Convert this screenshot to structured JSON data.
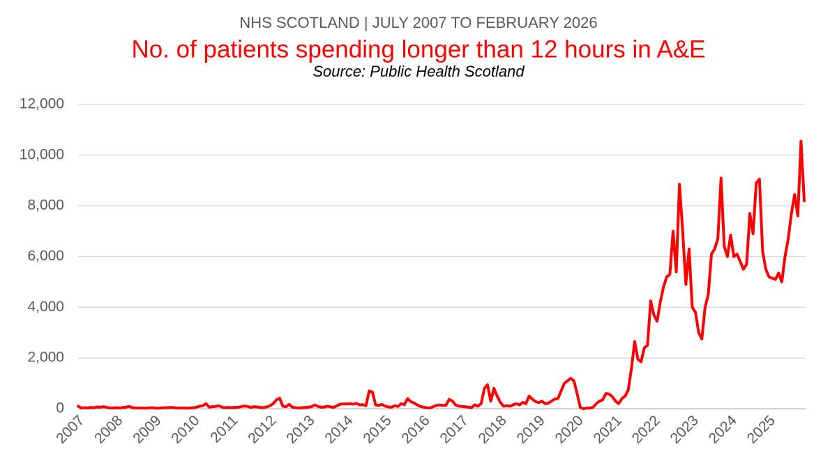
{
  "chart_data": {
    "type": "line",
    "subtitle": "NHS SCOTLAND | JULY 2007 TO FEBRUARY 2026",
    "title": "No. of patients spending longer than 12 hours in A&E",
    "source": "Source: Public Health Scotland",
    "color": "#ff0000",
    "grid": true,
    "ylim": [
      0,
      12000
    ],
    "yticks": [
      0,
      {
        "value": 2000,
        "label": "2,000"
      },
      {
        "value": 4000,
        "label": "4,000"
      },
      {
        "value": 6000,
        "label": "6,000"
      },
      {
        "value": 8000,
        "label": "8,000"
      },
      {
        "value": 10000,
        "label": "10,000"
      },
      {
        "value": 12000,
        "label": "12,000"
      }
    ],
    "categories": [
      "2007",
      null,
      null,
      null,
      null,
      null,
      null,
      null,
      null,
      null,
      null,
      null,
      "2008",
      null,
      null,
      null,
      null,
      null,
      null,
      null,
      null,
      null,
      null,
      null,
      "2009",
      null,
      null,
      null,
      null,
      null,
      null,
      null,
      null,
      null,
      null,
      null,
      "2010",
      null,
      null,
      null,
      null,
      null,
      null,
      null,
      null,
      null,
      null,
      null,
      "2011",
      null,
      null,
      null,
      null,
      null,
      null,
      null,
      null,
      null,
      null,
      null,
      "2012",
      null,
      null,
      null,
      null,
      null,
      null,
      null,
      null,
      null,
      null,
      null,
      "2013",
      null,
      null,
      null,
      null,
      null,
      null,
      null,
      null,
      null,
      null,
      null,
      "2014",
      null,
      null,
      null,
      null,
      null,
      null,
      null,
      null,
      null,
      null,
      null,
      "2015",
      null,
      null,
      null,
      null,
      null,
      null,
      null,
      null,
      null,
      null,
      null,
      "2016",
      null,
      null,
      null,
      null,
      null,
      null,
      null,
      null,
      null,
      null,
      null,
      "2017",
      null,
      null,
      null,
      null,
      null,
      null,
      null,
      null,
      null,
      null,
      null,
      "2018",
      null,
      null,
      null,
      null,
      null,
      null,
      null,
      null,
      null,
      null,
      null,
      "2019",
      null,
      null,
      null,
      null,
      null,
      null,
      null,
      null,
      null,
      null,
      null,
      "2020",
      null,
      null,
      null,
      null,
      null,
      null,
      null,
      null,
      null,
      null,
      null,
      "2021",
      null,
      null,
      null,
      null,
      null,
      null,
      null,
      null,
      null,
      null,
      null,
      "2022",
      null,
      null,
      null,
      null,
      null,
      null,
      null,
      null,
      null,
      null,
      null,
      "2023",
      null,
      null,
      null,
      null,
      null,
      null,
      null,
      null,
      null,
      null,
      null,
      "2024",
      null,
      null,
      null,
      null,
      null,
      null,
      null,
      null,
      null,
      null,
      null,
      "2025",
      null,
      null,
      null,
      null,
      null,
      null,
      null,
      null,
      null,
      null,
      null
    ],
    "values": [
      100,
      30,
      40,
      30,
      50,
      40,
      70,
      60,
      80,
      50,
      30,
      30,
      40,
      30,
      50,
      60,
      90,
      40,
      30,
      30,
      30,
      20,
      30,
      40,
      30,
      20,
      30,
      40,
      40,
      50,
      40,
      30,
      30,
      30,
      20,
      30,
      40,
      60,
      100,
      120,
      200,
      60,
      80,
      90,
      120,
      60,
      40,
      50,
      40,
      50,
      60,
      80,
      110,
      90,
      50,
      80,
      70,
      50,
      40,
      70,
      120,
      200,
      350,
      420,
      100,
      80,
      170,
      60,
      40,
      30,
      40,
      50,
      60,
      80,
      150,
      90,
      60,
      70,
      100,
      70,
      60,
      120,
      180,
      190,
      190,
      200,
      180,
      210,
      150,
      160,
      120,
      700,
      660,
      150,
      130,
      170,
      100,
      70,
      60,
      120,
      90,
      200,
      160,
      400,
      280,
      230,
      150,
      90,
      60,
      40,
      30,
      80,
      130,
      150,
      130,
      140,
      370,
      300,
      150,
      100,
      90,
      80,
      60,
      40,
      150,
      100,
      200,
      800,
      950,
      300,
      800,
      500,
      250,
      100,
      120,
      100,
      150,
      200,
      150,
      250,
      200,
      500,
      380,
      280,
      240,
      300,
      200,
      220,
      300,
      380,
      400,
      700,
      1000,
      1100,
      1200,
      1100,
      600,
      50,
      0,
      20,
      30,
      60,
      200,
      300,
      350,
      600,
      580,
      480,
      300,
      200,
      400,
      500,
      750,
      1600,
      2650,
      1950,
      1850,
      2400,
      2500,
      4250,
      3700,
      3450,
      4200,
      4800,
      5200,
      5300,
      7000,
      5400,
      8850,
      7000,
      4900,
      6300,
      4000,
      3800,
      3000,
      2750,
      4000,
      4500,
      6100,
      6300,
      6700,
      9100,
      6400,
      6000,
      6850,
      6000,
      6100,
      5800,
      5500,
      5700,
      7700,
      6900,
      8900,
      9050,
      6200,
      5500,
      5200,
      5150,
      5100,
      5350,
      5000,
      6000,
      6700,
      7700,
      8450,
      7600,
      10550,
      8200
    ]
  }
}
